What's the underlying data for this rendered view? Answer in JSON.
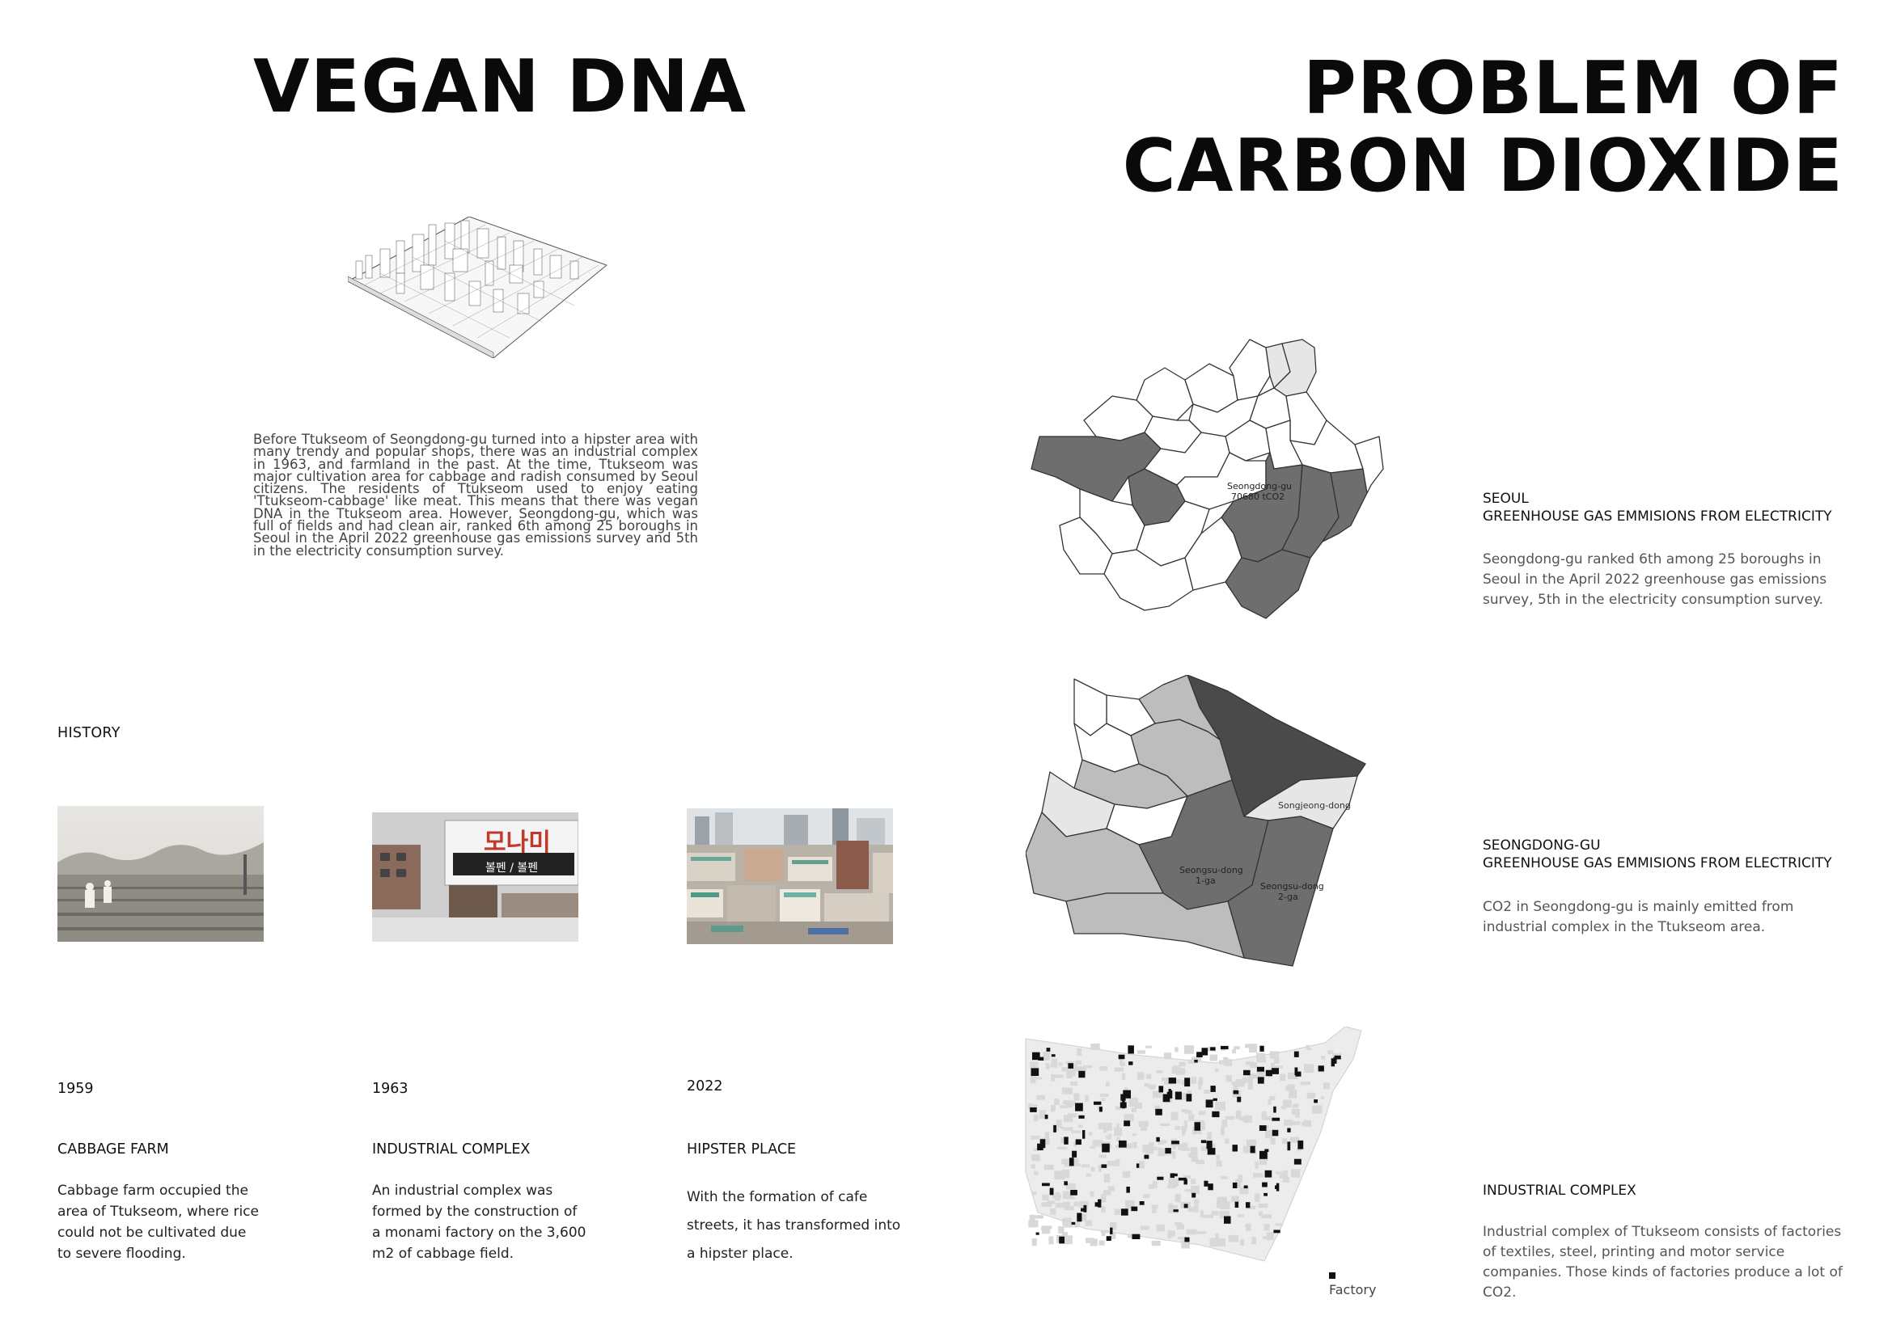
{
  "left": {
    "title": "VEGAN DNA",
    "intro": "Before Ttukseom of Seongdong-gu turned into a hipster area with many trendy and popular shops, there was an industrial complex in 1963, and farmland in the past. At the time, Ttukseom was major cultivation area for cabbage and radish consumed by Seoul citizens. The residents of Ttukseom used to enjoy eating 'Ttukseom-cabbage' like meat. This means that there was vegan DNA in the Ttukseom area. However, Seongdong-gu, which was full of fields and had clean air, ranked 6th among 25 boroughs in Seoul in the April 2022 greenhouse gas emissions survey and 5th in the electricity consumption survey.",
    "history_label": "HISTORY",
    "history": [
      {
        "year": "1959",
        "heading": "CABBAGE FARM",
        "text": "Cabbage farm occupied the area of Ttukseom, where rice could not be cultivated due to severe flooding."
      },
      {
        "year": "1963",
        "heading": "INDUSTRIAL COMPLEX",
        "text": "An industrial complex was formed by the construction of a monami factory on the 3,600 m2 of cabbage field."
      },
      {
        "year": "2022",
        "heading": "HIPSTER PLACE",
        "text": "With the formation of cafe streets, it has transformed into a hipster place."
      }
    ],
    "sign_text": "모나미",
    "sign_subtext": "볼펜 / 볼펜"
  },
  "right": {
    "title_line1": "PROBLEM OF",
    "title_line2": "CARBON DIOXIDE",
    "seoul": {
      "heading_line1": "SEOUL",
      "heading_line2": "GREENHOUSE GAS EMMISIONS FROM ELECTRICITY",
      "text": "Seongdong-gu ranked 6th among 25 boroughs in Seoul in the April 2022 greenhouse gas emissions survey, 5th in the electricity consumption survey.",
      "map_label_line1": "Seongdong-gu",
      "map_label_line2": "70680 tCO2"
    },
    "seongdong": {
      "heading_line1": "SEONGDONG-GU",
      "heading_line2": "GREENHOUSE GAS EMMISIONS FROM ELECTRICITY",
      "text": "CO2 in Seongdong-gu is mainly emitted from industrial complex in the Ttukseom area.",
      "map_labels": {
        "songjeong": "Songjeong-dong",
        "seongsu1_line1": "Seongsu-dong",
        "seongsu1_line2": "1-ga",
        "seongsu2_line1": "Seongsu-dong",
        "seongsu2_line2": "2-ga"
      }
    },
    "industrial": {
      "heading": "INDUSTRIAL COMPLEX",
      "text": "Industrial complex of Ttukseom consists of factories of textiles, steel, printing and motor service companies. Those kinds of factories produce a lot of CO2.",
      "legend": "Factory"
    }
  },
  "colors": {
    "title": "#0a0a0a",
    "dark_district": "#6e6e6e",
    "mid_district": "#bdbdbd",
    "light_district": "#e6e6e6",
    "darkest_district": "#4a4a4a"
  }
}
